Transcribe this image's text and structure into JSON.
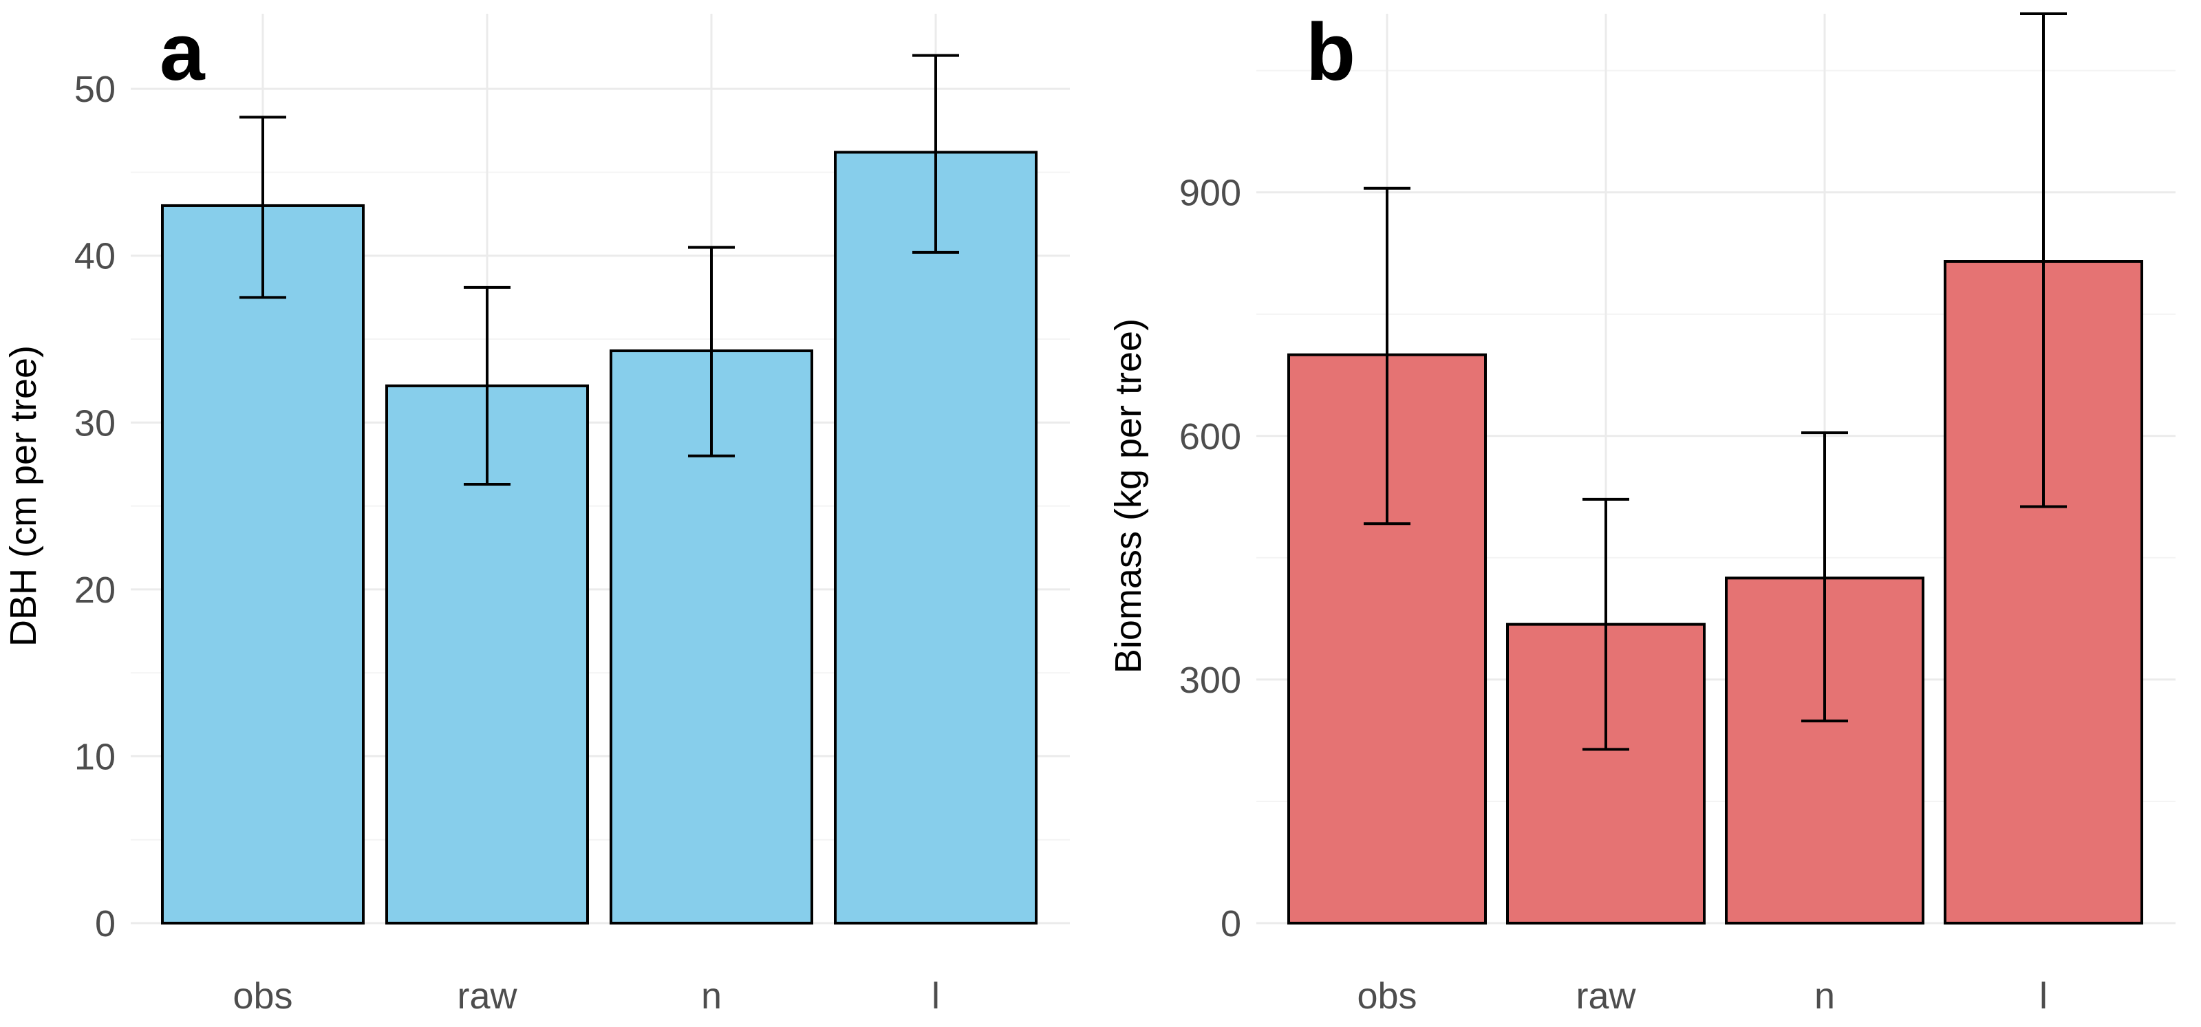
{
  "chart_data": [
    {
      "type": "bar",
      "panel_label": "a",
      "categories": [
        "obs",
        "raw",
        "n",
        "l"
      ],
      "values": [
        43.0,
        32.2,
        34.3,
        46.2
      ],
      "error_low": [
        37.5,
        26.3,
        28.0,
        40.2
      ],
      "error_high": [
        48.3,
        38.1,
        40.5,
        52.0
      ],
      "ylabel": "DBH (cm per tree)",
      "xlabel": "",
      "ylim": [
        0,
        54.5
      ],
      "yticks": [
        0,
        10,
        20,
        30,
        40,
        50
      ],
      "ytick_labels": [
        "0",
        "10",
        "20",
        "30",
        "40",
        "50"
      ],
      "bar_color": "#87CEEB",
      "grid": true,
      "legend": "none"
    },
    {
      "type": "bar",
      "panel_label": "b",
      "categories": [
        "obs",
        "raw",
        "n",
        "l"
      ],
      "values": [
        700,
        368,
        425,
        815
      ],
      "error_low": [
        492,
        214,
        249,
        513
      ],
      "error_high": [
        905,
        522,
        604,
        1120
      ],
      "ylabel": "Biomass (kg per tree)",
      "xlabel": "",
      "ylim": [
        0,
        1120
      ],
      "yticks": [
        0,
        300,
        600,
        900
      ],
      "ytick_labels": [
        "0",
        "300",
        "600",
        "900"
      ],
      "bar_color": "#E57373",
      "grid": true,
      "legend": "none"
    }
  ]
}
